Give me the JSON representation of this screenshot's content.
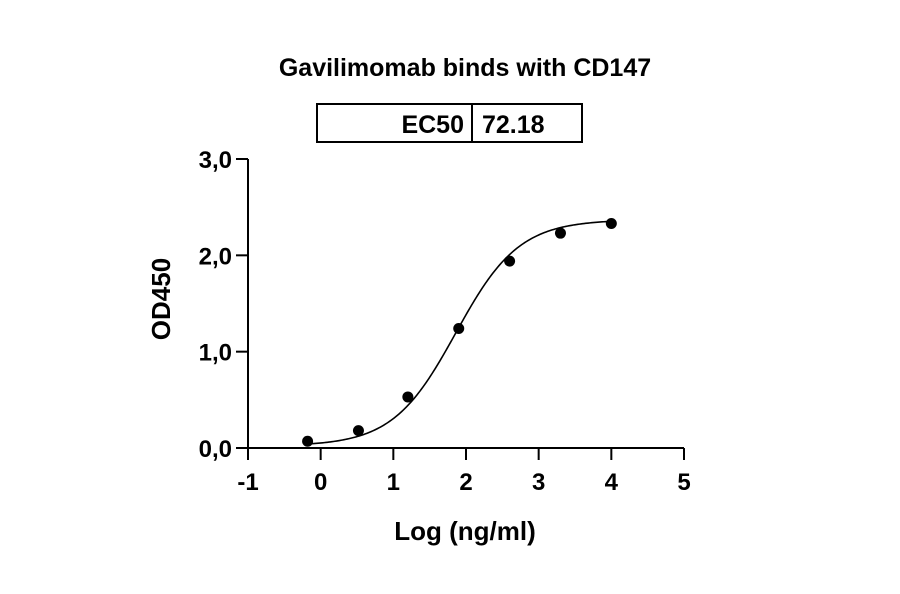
{
  "chart_data": {
    "type": "scatter",
    "title": "Gavilimomab binds with CD147",
    "xlabel": "Log (ng/ml)",
    "ylabel": "OD450",
    "xlim": [
      -1,
      5
    ],
    "ylim": [
      0,
      3
    ],
    "x_ticks": [
      -1,
      0,
      1,
      2,
      3,
      4,
      5
    ],
    "x_tick_labels": [
      "-1",
      "0",
      "1",
      "2",
      "3",
      "4",
      "5"
    ],
    "y_ticks": [
      0,
      1,
      2,
      3
    ],
    "y_tick_labels": [
      "0,0",
      "1,0",
      "2,0",
      "3,0"
    ],
    "grid": false,
    "fit": "sigmoidal",
    "series": [
      {
        "x": [
          -0.18,
          0.52,
          1.2,
          1.9,
          2.6,
          3.3,
          4.0
        ],
        "y": [
          0.07,
          0.18,
          0.53,
          1.24,
          1.94,
          2.23,
          2.33
        ]
      }
    ],
    "summary_table": {
      "label": "EC50",
      "value": "72.18"
    }
  },
  "colors": {
    "points": "#000000",
    "line": "#000000",
    "background": "#ffffff"
  }
}
